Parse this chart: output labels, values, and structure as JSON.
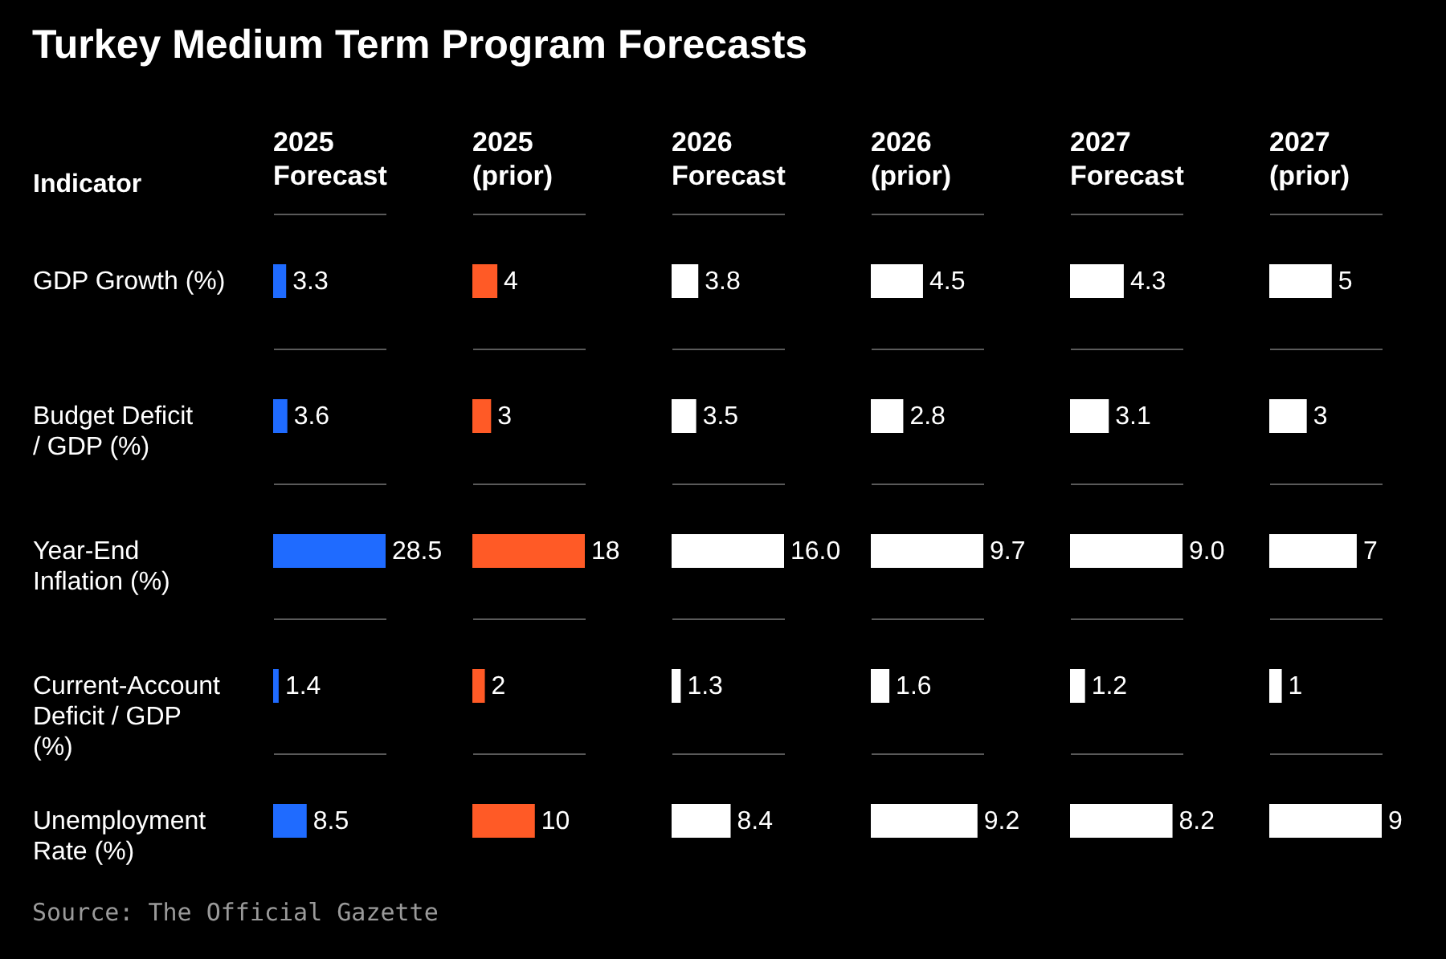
{
  "chart_data": [
    {
      "type": "other",
      "title": "Turkey Medium Term Program Forecasts",
      "annotations": [
        "Source: The Official Gazette"
      ]
    },
    {
      "type": "bar",
      "orientation": "horizontal",
      "title": "2025 Forecast",
      "ylabel": "Indicator",
      "tick_labels": "y",
      "grid": "y",
      "categories": [
        "GDP Growth (%)",
        "Budget Deficit / GDP (%)",
        "Year-End Inflation (%)",
        "Current-Account Deficit / GDP (%)",
        "Unemployment Rate (%)"
      ],
      "series": [
        {
          "color": "#1f6bff",
          "values": [
            3.3,
            3.6,
            28.5,
            1.4,
            8.5
          ],
          "value_labels": [
            "3.3",
            "3.6",
            "28.5",
            "1.4",
            "8.5"
          ]
        }
      ]
    },
    {
      "type": "bar",
      "orientation": "horizontal",
      "title": "2025 (prior)",
      "tick_labels": false,
      "grid": "y",
      "categories": [
        null,
        null,
        null,
        null,
        null
      ],
      "series": [
        {
          "color": "#ff5a26",
          "values": [
            4,
            3,
            18,
            2,
            10
          ],
          "value_labels": [
            "4",
            "3",
            "18",
            "2",
            "10"
          ]
        }
      ]
    },
    {
      "type": "bar",
      "orientation": "horizontal",
      "title": "2026 Forecast",
      "tick_labels": false,
      "grid": "y",
      "categories": [
        null,
        null,
        null,
        null,
        null
      ],
      "series": [
        {
          "color": "#ffffff",
          "values": [
            3.8,
            3.5,
            16.0,
            1.3,
            8.4
          ],
          "value_labels": [
            "3.8",
            "3.5",
            "16.0",
            "1.3",
            "8.4"
          ]
        }
      ]
    },
    {
      "type": "bar",
      "orientation": "horizontal",
      "title": "2026 (prior)",
      "tick_labels": false,
      "grid": "y",
      "categories": [
        null,
        null,
        null,
        null,
        null
      ],
      "series": [
        {
          "color": "#ffffff",
          "values": [
            4.5,
            2.8,
            9.7,
            1.6,
            9.2
          ],
          "value_labels": [
            "4.5",
            "2.8",
            "9.7",
            "1.6",
            "9.2"
          ]
        }
      ]
    },
    {
      "type": "bar",
      "orientation": "horizontal",
      "title": "2027 Forecast",
      "tick_labels": false,
      "grid": "y",
      "categories": [
        null,
        null,
        null,
        null,
        null
      ],
      "series": [
        {
          "color": "#ffffff",
          "values": [
            4.3,
            3.1,
            9.0,
            1.2,
            8.2
          ],
          "value_labels": [
            "4.3",
            "3.1",
            "9.0",
            "1.2",
            "8.2"
          ]
        }
      ]
    },
    {
      "type": "bar",
      "orientation": "horizontal",
      "title": "2027 (prior)",
      "tick_labels": false,
      "grid": "y",
      "categories": [
        null,
        null,
        null,
        null,
        null
      ],
      "series": [
        {
          "color": "#ffffff",
          "values": [
            5,
            3,
            7,
            1,
            9
          ],
          "value_labels": [
            "5",
            "3",
            "7",
            "1",
            "9"
          ]
        }
      ]
    }
  ]
}
